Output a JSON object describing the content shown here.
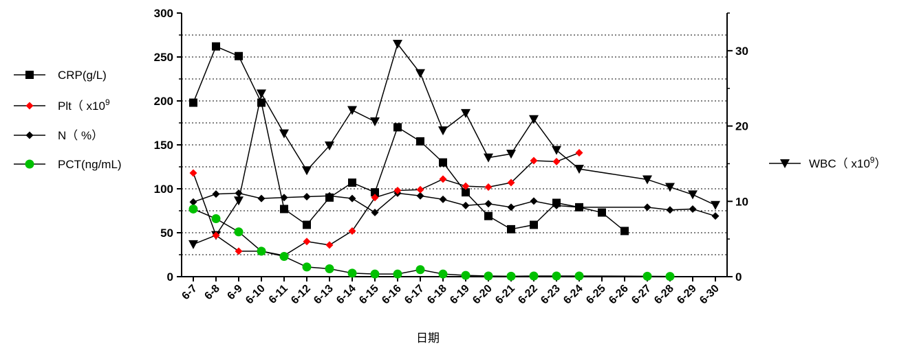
{
  "chart_data": {
    "type": "line",
    "xlabel": "日期",
    "categories": [
      "6-7",
      "6-8",
      "6-9",
      "6-10",
      "6-11",
      "6-12",
      "6-13",
      "6-14",
      "6-15",
      "6-16",
      "6-17",
      "6-18",
      "6-19",
      "6-20",
      "6-21",
      "6-22",
      "6-23",
      "6-24",
      "6-25",
      "6-26",
      "6-27",
      "6-28",
      "6-29",
      "6-30"
    ],
    "y_left": {
      "range": [
        0,
        300
      ],
      "ticks": [
        0,
        50,
        100,
        150,
        200,
        250,
        300
      ]
    },
    "y_right": {
      "range": [
        0,
        35
      ],
      "ticks": [
        0,
        10,
        20,
        30
      ]
    },
    "grid": "dotted horizontal lines at every 25 units of the left axis",
    "series": [
      {
        "legend": [
          "CRP(g/L)"
        ],
        "axis": "left",
        "marker": "square",
        "color": "#000000",
        "values": [
          198,
          262,
          251,
          198,
          77,
          59,
          90,
          107,
          96,
          170,
          154,
          130,
          96,
          69,
          54,
          59,
          84,
          79,
          73,
          52,
          null,
          null,
          null,
          null
        ]
      },
      {
        "legend": [
          "Plt（ x10",
          "9",
          ""
        ],
        "axis": "left",
        "marker": "diamond",
        "color": "#ff0000",
        "values": [
          118,
          47,
          29,
          29,
          24,
          40,
          36,
          52,
          90,
          98,
          99,
          111,
          103,
          102,
          107,
          132,
          131,
          141,
          null,
          null,
          null,
          null,
          null,
          null
        ]
      },
      {
        "legend": [
          "N（ %）"
        ],
        "axis": "left",
        "marker": "diamond",
        "color": "#000000",
        "values": [
          85,
          94,
          95,
          89,
          90,
          91,
          92,
          89,
          73,
          95,
          92,
          88,
          81,
          83,
          79,
          86,
          81,
          79,
          null,
          null,
          79,
          76,
          77,
          69
        ]
      },
      {
        "legend": [
          "PCT(ng/mL)"
        ],
        "axis": "left",
        "marker": "circle",
        "color": "#00c000",
        "values": [
          77,
          66,
          51,
          29,
          23,
          11,
          9,
          4,
          3,
          3,
          8,
          3,
          1.5,
          0.8,
          0.5,
          0.8,
          0.8,
          0.8,
          null,
          null,
          0.5,
          0.3,
          null,
          null
        ]
      },
      {
        "legend": [
          "WBC（ x10",
          "9",
          "）"
        ],
        "axis": "right",
        "marker": "triangle-down",
        "color": "#000000",
        "values": [
          4.3,
          5.5,
          10.1,
          24.3,
          19.0,
          14.1,
          17.4,
          22.1,
          20.6,
          30.9,
          27.0,
          19.4,
          21.7,
          15.8,
          16.3,
          20.9,
          16.8,
          14.3,
          null,
          null,
          12.9,
          11.9,
          10.9,
          9.5
        ]
      }
    ]
  }
}
